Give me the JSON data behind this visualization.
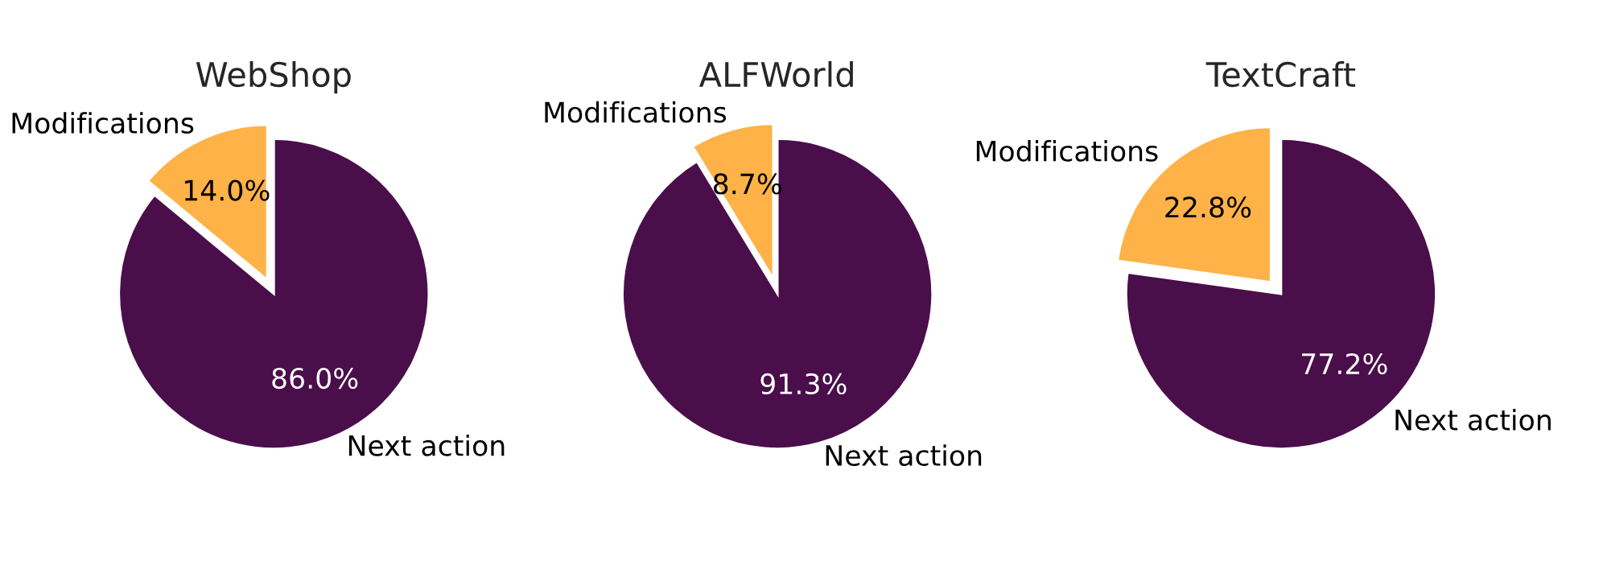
{
  "chart_data": [
    {
      "type": "pie",
      "title": "WebShop",
      "categories": [
        "Modifications",
        "Next action"
      ],
      "values": [
        14.0,
        86.0
      ],
      "value_labels": [
        "14.0%",
        "86.0%"
      ],
      "colors": [
        "#feb247",
        "#4a0e4b"
      ]
    },
    {
      "type": "pie",
      "title": "ALFWorld",
      "categories": [
        "Modifications",
        "Next action"
      ],
      "values": [
        8.7,
        91.3
      ],
      "value_labels": [
        "8.7%",
        "91.3%"
      ],
      "colors": [
        "#feb247",
        "#4a0e4b"
      ]
    },
    {
      "type": "pie",
      "title": "TextCraft",
      "categories": [
        "Modifications",
        "Next action"
      ],
      "values": [
        22.8,
        77.2
      ],
      "value_labels": [
        "22.8%",
        "77.2%"
      ],
      "colors": [
        "#feb247",
        "#4a0e4b"
      ]
    }
  ]
}
